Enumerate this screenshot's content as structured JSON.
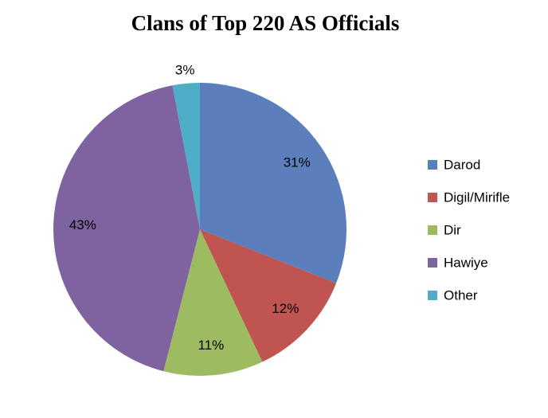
{
  "chart_data": {
    "type": "pie",
    "title": "Clans of Top 220 AS Officials",
    "categories": [
      "Darod",
      "Digil/Mirifle",
      "Dir",
      "Hawiye",
      "Other"
    ],
    "values": [
      31,
      12,
      11,
      43,
      3
    ],
    "value_labels": [
      "31%",
      "12%",
      "11%",
      "43%",
      "3%"
    ],
    "colors": [
      "#5b7fbd",
      "#bf5450",
      "#9dbb61",
      "#7e63a0",
      "#4eaec8"
    ],
    "legend": "right"
  }
}
